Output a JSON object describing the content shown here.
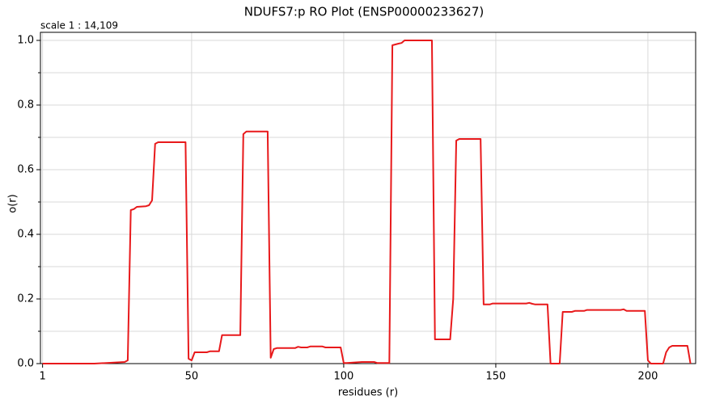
{
  "chart_data": {
    "type": "line",
    "title": "NDUFS7:p RO Plot (ENSP00000233627)",
    "subtitle": "scale 1 : 14,109",
    "x_label": "residues (r)",
    "y_label": "o(r)",
    "xlim": [
      0.3,
      215.7
    ],
    "ylim": [
      0,
      1.025
    ],
    "xticks": [
      1,
      50,
      100,
      150,
      200
    ],
    "yticks": [
      {
        "value": 0,
        "label": "0.0"
      },
      {
        "value": 0.2,
        "label": "0.2"
      },
      {
        "value": 0.4,
        "label": "0.4"
      },
      {
        "value": 0.6,
        "label": "0.6"
      },
      {
        "value": 0.8,
        "label": "0.8"
      },
      {
        "value": 1,
        "label": "1.0"
      }
    ],
    "yminorticks": [
      0.1,
      0.3,
      0.5,
      0.7,
      0.9
    ],
    "grid": true,
    "series": [
      {
        "color": "#e8191b",
        "x": [
          1,
          13,
          18,
          28,
          29,
          30,
          31,
          32,
          35,
          36,
          37,
          38,
          39,
          40,
          48,
          49,
          50,
          51,
          55,
          56,
          59,
          60,
          66,
          67,
          68,
          75,
          76,
          77,
          78,
          84,
          85,
          86,
          88,
          89,
          93,
          94,
          99,
          100,
          101,
          106,
          110,
          111,
          115,
          116,
          118,
          119,
          120,
          129,
          130,
          135,
          136,
          137,
          138,
          145,
          146,
          148,
          149,
          160,
          161,
          162,
          163,
          167,
          168,
          171,
          172,
          175,
          176,
          179,
          180,
          191,
          192,
          193,
          199,
          200,
          201,
          205,
          206,
          207,
          208,
          213,
          214
        ],
        "values": [
          0,
          0,
          0,
          0.005,
          0.01,
          0.475,
          0.478,
          0.485,
          0.487,
          0.49,
          0.505,
          0.68,
          0.685,
          0.685,
          0.685,
          0.015,
          0.01,
          0.035,
          0.035,
          0.038,
          0.038,
          0.088,
          0.088,
          0.71,
          0.718,
          0.718,
          0.018,
          0.045,
          0.048,
          0.048,
          0.052,
          0.05,
          0.05,
          0.053,
          0.053,
          0.05,
          0.05,
          0.002,
          0.002,
          0.005,
          0.005,
          0.002,
          0.002,
          0.985,
          0.99,
          0.992,
          1.0,
          1.0,
          0.075,
          0.075,
          0.2,
          0.69,
          0.695,
          0.695,
          0.183,
          0.183,
          0.186,
          0.186,
          0.188,
          0.185,
          0.183,
          0.183,
          0.0,
          0.0,
          0.16,
          0.16,
          0.163,
          0.163,
          0.166,
          0.166,
          0.168,
          0.163,
          0.163,
          0.01,
          0.0,
          0.0,
          0.035,
          0.05,
          0.055,
          0.055,
          0.0
        ]
      }
    ]
  }
}
